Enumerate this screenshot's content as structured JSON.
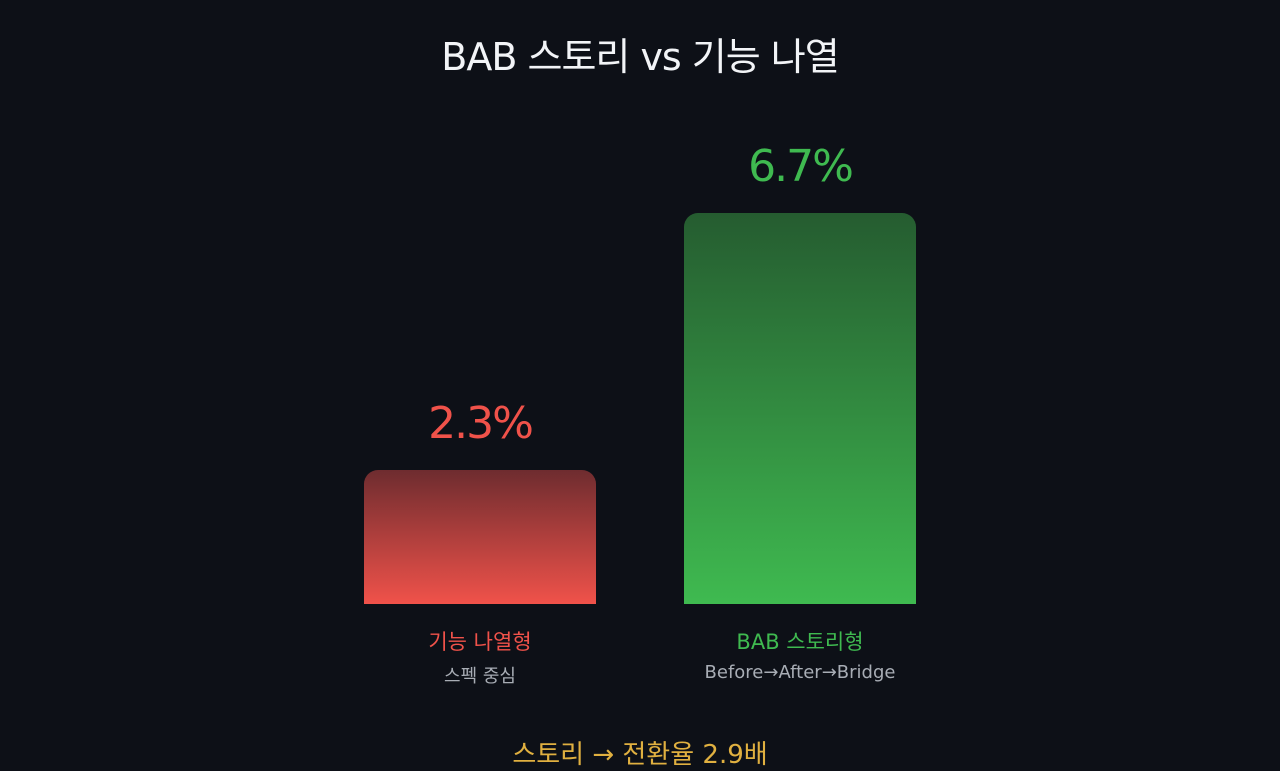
{
  "chart_data": {
    "type": "bar",
    "title": "BAB 스토리 vs 기능 나열",
    "categories": [
      "기능 나열형",
      "BAB 스토리형"
    ],
    "subtitles": [
      "스펙 중심",
      "Before→After→Bridge"
    ],
    "values": [
      2.3,
      6.7
    ],
    "value_labels": [
      "2.3%",
      "6.7%"
    ],
    "ylim": [
      0,
      6.7
    ],
    "grid": false,
    "colors": {
      "top": [
        "#6e2c2f",
        "#255c30"
      ],
      "bottom": [
        "#f0524a",
        "#3fba50"
      ],
      "text": [
        "#f0524a",
        "#3fba50"
      ]
    }
  },
  "footer": "스토리 → 전환율 2.9배"
}
